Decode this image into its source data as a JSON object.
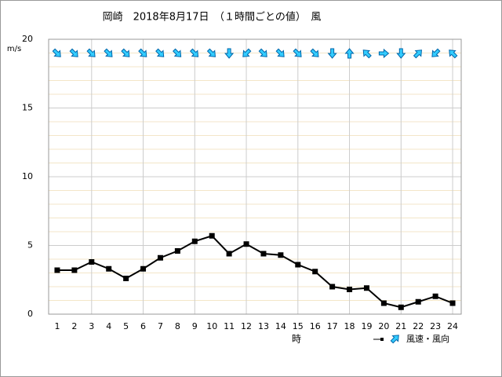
{
  "chart_data": {
    "type": "line",
    "title": "岡崎　2018年8月17日　（１時間ごとの値）　風",
    "y_label": "m/s",
    "x_label": "時",
    "legend_label": "風速・風向",
    "x": [
      1,
      2,
      3,
      4,
      5,
      6,
      7,
      8,
      9,
      10,
      11,
      12,
      13,
      14,
      15,
      16,
      17,
      18,
      19,
      20,
      21,
      22,
      23,
      24
    ],
    "xticks": [
      1,
      2,
      3,
      4,
      5,
      6,
      7,
      8,
      9,
      10,
      11,
      12,
      13,
      14,
      15,
      16,
      17,
      18,
      19,
      20,
      21,
      22,
      23,
      24
    ],
    "xlim": [
      0.5,
      24.5
    ],
    "series": [
      {
        "name": "風速",
        "color": "#000000",
        "values": [
          3.2,
          3.2,
          3.8,
          3.3,
          2.6,
          3.3,
          4.1,
          4.6,
          5.3,
          5.7,
          4.4,
          5.1,
          4.4,
          4.3,
          3.6,
          3.1,
          2.0,
          1.8,
          1.9,
          0.8,
          0.5,
          0.9,
          1.3,
          0.8
        ]
      }
    ],
    "directions": [
      135,
      135,
      135,
      135,
      135,
      135,
      135,
      135,
      135,
      135,
      180,
      225,
      135,
      135,
      135,
      135,
      180,
      0,
      315,
      90,
      180,
      45,
      225,
      315
    ],
    "arrow_color": "#33ccff",
    "ylim": [
      0,
      20
    ],
    "yticks": [
      0,
      5,
      10,
      15,
      20
    ],
    "grid": true
  }
}
